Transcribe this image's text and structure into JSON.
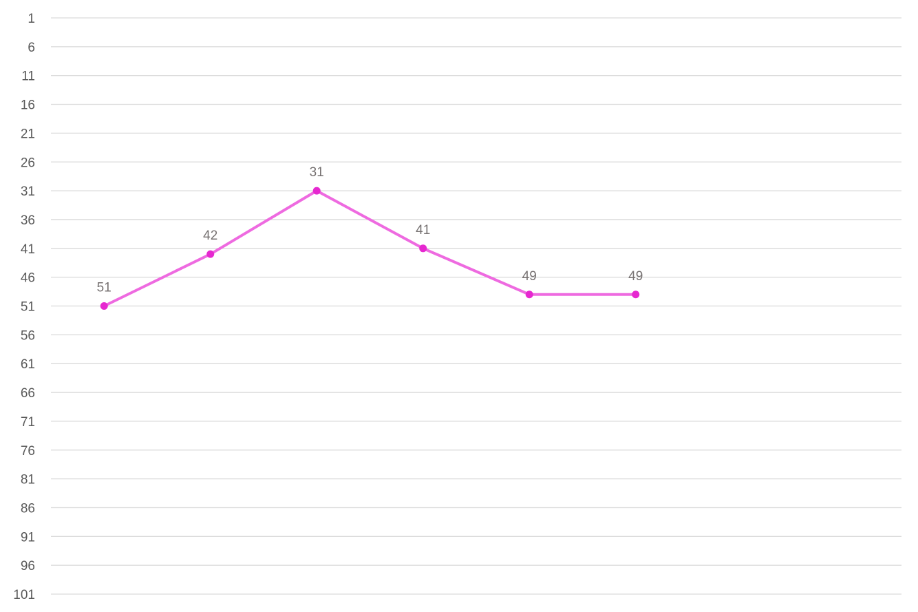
{
  "chart_data": {
    "type": "line",
    "title": "",
    "xlabel": "",
    "ylabel": "",
    "y_axis_reversed": true,
    "ylim": [
      1,
      101
    ],
    "y_ticks": [
      1,
      6,
      11,
      16,
      21,
      26,
      31,
      36,
      41,
      46,
      51,
      56,
      61,
      66,
      71,
      76,
      81,
      86,
      91,
      96,
      101
    ],
    "category_count": 8,
    "grid": true,
    "legend": "none",
    "series": [
      {
        "values": [
          51,
          42,
          31,
          41,
          49,
          49
        ],
        "line_color": "#EE6AE0",
        "marker_color": "#E628D0",
        "data_labels": true
      }
    ],
    "colors": {
      "grid": "#D9D9D9",
      "tick_text": "#595959",
      "data_label_text": "#767171"
    }
  }
}
